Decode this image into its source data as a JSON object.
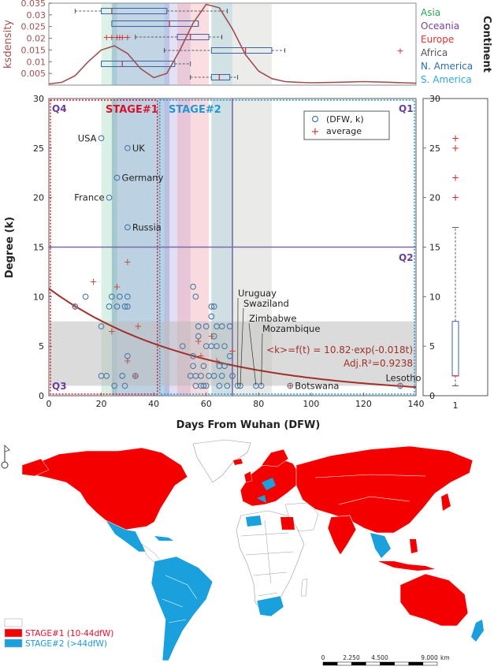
{
  "colors": {
    "asia": "#2e9e5c",
    "oceania": "#7c3fa0",
    "europe": "#e03030",
    "africa": "#555555",
    "namerica": "#2a6fb0",
    "samerica": "#2ea8d8",
    "stage1": "#e0102a",
    "stage2": "#1a9ad6",
    "purple": "#6a3d9a",
    "fit": "#a0302a",
    "ks": "#a05050",
    "map_stage1": "#f50000",
    "map_stage2": "#1aa0dc"
  },
  "chart_data": [
    {
      "type": "line",
      "name": "ksdensity",
      "ylabel": "ksdensity",
      "ylim": [
        0,
        0.035
      ],
      "yticks": [
        0.005,
        0.01,
        0.015,
        0.02,
        0.025,
        0.03,
        0.035
      ],
      "xlim": [
        0,
        140
      ],
      "x": [
        0,
        5,
        10,
        15,
        20,
        25,
        30,
        35,
        40,
        45,
        50,
        55,
        60,
        65,
        70,
        75,
        80,
        85,
        90,
        95,
        100,
        110,
        120,
        130,
        140
      ],
      "y": [
        0.0005,
        0.0012,
        0.004,
        0.01,
        0.015,
        0.0168,
        0.0135,
        0.007,
        0.0032,
        0.005,
        0.015,
        0.0265,
        0.0345,
        0.033,
        0.024,
        0.013,
        0.006,
        0.0028,
        0.0015,
        0.0012,
        0.001,
        0.0012,
        0.0015,
        0.0012,
        0.0008
      ],
      "legend_title": "Continent",
      "legend": [
        "Asia",
        "Oceania",
        "Europe",
        "Africa",
        "N. America",
        "S. America"
      ],
      "boxplots": [
        {
          "continent": "Asia",
          "whisker_low": 10,
          "q1": 20,
          "median": 24,
          "q3": 45,
          "whisker_high": 68
        },
        {
          "continent": "Oceania",
          "whisker_low": 24,
          "q1": 24,
          "median": 46,
          "q3": 57,
          "whisker_high": 57
        },
        {
          "continent": "Europe",
          "whisker_low": 33,
          "q1": 49,
          "median": 54,
          "q3": 61,
          "whisker_high": 66,
          "outliers": [
            22,
            24,
            26,
            27,
            28,
            30
          ]
        },
        {
          "continent": "Africa",
          "whisker_low": 44,
          "q1": 62,
          "median": 75,
          "q3": 85,
          "whisker_high": 90,
          "outliers": [
            134
          ]
        },
        {
          "continent": "N. America",
          "whisker_low": 20,
          "q1": 20,
          "median": 28,
          "q3": 48,
          "whisker_high": 54
        },
        {
          "continent": "S. America",
          "whisker_low": 54,
          "q1": 62,
          "median": 65,
          "q3": 69,
          "whisker_high": 72
        }
      ]
    },
    {
      "type": "scatter",
      "xlabel": "Days From Wuhan (DFW)",
      "ylabel": "Degree (k)",
      "xlim": [
        0,
        140
      ],
      "ylim": [
        0,
        30
      ],
      "xticks": [
        0,
        20,
        40,
        60,
        80,
        100,
        120,
        140
      ],
      "yticks": [
        0,
        5,
        10,
        15,
        20,
        25,
        30
      ],
      "legend": [
        "(DFW, k)",
        "average"
      ],
      "points": [
        {
          "x": 20,
          "y": 26
        },
        {
          "x": 30,
          "y": 25
        },
        {
          "x": 26,
          "y": 22
        },
        {
          "x": 23,
          "y": 20
        },
        {
          "x": 30,
          "y": 17
        },
        {
          "x": 10,
          "y": 9
        },
        {
          "x": 14,
          "y": 10
        },
        {
          "x": 20,
          "y": 7
        },
        {
          "x": 20,
          "y": 2
        },
        {
          "x": 22,
          "y": 2
        },
        {
          "x": 23,
          "y": 9
        },
        {
          "x": 24,
          "y": 10
        },
        {
          "x": 25,
          "y": 1
        },
        {
          "x": 26,
          "y": 9
        },
        {
          "x": 27,
          "y": 10
        },
        {
          "x": 28,
          "y": 2
        },
        {
          "x": 29,
          "y": 9
        },
        {
          "x": 29,
          "y": 1
        },
        {
          "x": 30,
          "y": 10
        },
        {
          "x": 30,
          "y": 9
        },
        {
          "x": 30,
          "y": 4
        },
        {
          "x": 33,
          "y": 2
        },
        {
          "x": 51,
          "y": 5
        },
        {
          "x": 54,
          "y": 2
        },
        {
          "x": 55,
          "y": 4
        },
        {
          "x": 55,
          "y": 3
        },
        {
          "x": 55,
          "y": 11
        },
        {
          "x": 56,
          "y": 10
        },
        {
          "x": 56,
          "y": 2
        },
        {
          "x": 56,
          "y": 1
        },
        {
          "x": 57,
          "y": 7
        },
        {
          "x": 57,
          "y": 6
        },
        {
          "x": 58,
          "y": 2
        },
        {
          "x": 58,
          "y": 1
        },
        {
          "x": 59,
          "y": 3
        },
        {
          "x": 59,
          "y": 1
        },
        {
          "x": 60,
          "y": 5
        },
        {
          "x": 60,
          "y": 7
        },
        {
          "x": 60,
          "y": 1
        },
        {
          "x": 61,
          "y": 2
        },
        {
          "x": 62,
          "y": 9
        },
        {
          "x": 62,
          "y": 8
        },
        {
          "x": 62,
          "y": 5
        },
        {
          "x": 63,
          "y": 9
        },
        {
          "x": 63,
          "y": 6
        },
        {
          "x": 63,
          "y": 2
        },
        {
          "x": 64,
          "y": 7
        },
        {
          "x": 64,
          "y": 5
        },
        {
          "x": 65,
          "y": 3
        },
        {
          "x": 65,
          "y": 1
        },
        {
          "x": 66,
          "y": 7
        },
        {
          "x": 66,
          "y": 2
        },
        {
          "x": 67,
          "y": 3
        },
        {
          "x": 67,
          "y": 5
        },
        {
          "x": 68,
          "y": 1
        },
        {
          "x": 69,
          "y": 7
        },
        {
          "x": 69,
          "y": 4
        },
        {
          "x": 70,
          "y": 2
        },
        {
          "x": 72,
          "y": 1
        },
        {
          "x": 73,
          "y": 1
        },
        {
          "x": 79,
          "y": 1
        },
        {
          "x": 81,
          "y": 1
        },
        {
          "x": 92,
          "y": 1
        },
        {
          "x": 134,
          "y": 1
        }
      ],
      "averages": [
        {
          "x": 30,
          "y": 13.5
        },
        {
          "x": 17,
          "y": 11.5
        },
        {
          "x": 26,
          "y": 11
        },
        {
          "x": 10,
          "y": 9
        },
        {
          "x": 34,
          "y": 7
        },
        {
          "x": 24,
          "y": 6.5
        },
        {
          "x": 30,
          "y": 3.5
        },
        {
          "x": 62,
          "y": 6
        },
        {
          "x": 57,
          "y": 5.5
        },
        {
          "x": 58,
          "y": 4
        },
        {
          "x": 64,
          "y": 3.5
        },
        {
          "x": 70,
          "y": 4.5
        },
        {
          "x": 33,
          "y": 2
        },
        {
          "x": 92,
          "y": 1
        },
        {
          "x": 134,
          "y": 1
        }
      ],
      "labels": [
        {
          "text": "USA",
          "x": 20,
          "y": 26
        },
        {
          "text": "UK",
          "x": 30,
          "y": 25
        },
        {
          "text": "Germany",
          "x": 26,
          "y": 22
        },
        {
          "text": "France",
          "x": 23,
          "y": 20
        },
        {
          "text": "Russia",
          "x": 30,
          "y": 17
        },
        {
          "text": "Uruguay",
          "x": 72,
          "y": 1
        },
        {
          "text": "Swaziland",
          "x": 73,
          "y": 1
        },
        {
          "text": "Zimbabwe",
          "x": 79,
          "y": 1
        },
        {
          "text": "Mozambique",
          "x": 81,
          "y": 1
        },
        {
          "text": "Botswana",
          "x": 92,
          "y": 1
        },
        {
          "text": "Lesotho",
          "x": 134,
          "y": 1
        }
      ],
      "fit": {
        "a": 10.82,
        "b": -0.018,
        "label": "<k>=f(t) = 10.82·exp(-0.018t)",
        "r2_label": "Adj.R²=0.9238"
      },
      "stage1": {
        "label": "STAGE#1",
        "x0": 0,
        "x1": 42
      },
      "stage2": {
        "label": "STAGE#2",
        "x0": 42,
        "x1": 140
      },
      "quadrants": [
        "Q1",
        "Q2",
        "Q3",
        "Q4"
      ],
      "q_split": {
        "x": 70,
        "y": 15
      },
      "bands": [
        {
          "x0": 20,
          "x1": 26,
          "continent": "Asia"
        },
        {
          "x0": 24,
          "x1": 46,
          "continent": "N. America"
        },
        {
          "x0": 44,
          "x1": 54,
          "continent": "Oceania"
        },
        {
          "x0": 49,
          "x1": 61,
          "continent": "Europe"
        },
        {
          "x0": 62,
          "x1": 70,
          "continent": "S. America"
        },
        {
          "x0": 62,
          "x1": 85,
          "continent": "Africa"
        }
      ],
      "hband": {
        "y0": 1,
        "y1": 7.5
      },
      "right_boxplot": {
        "x_tick": "1",
        "whisker_low": 1,
        "q1": 2,
        "median": 2,
        "q3": 7.5,
        "whisker_high": 17,
        "outliers": [
          20,
          22,
          25,
          26
        ]
      }
    }
  ],
  "map": {
    "legend": [
      {
        "label": "",
        "color": "#ffffff"
      },
      {
        "label": "STAGE#1 (10-44dfW)",
        "color": "#f50000"
      },
      {
        "label": "STAGE#2 (>44dfW)",
        "color": "#1aa0dc"
      }
    ],
    "scale_labels": [
      "0",
      "2.250",
      "4.500",
      "9.000"
    ],
    "scale_unit": "km"
  }
}
